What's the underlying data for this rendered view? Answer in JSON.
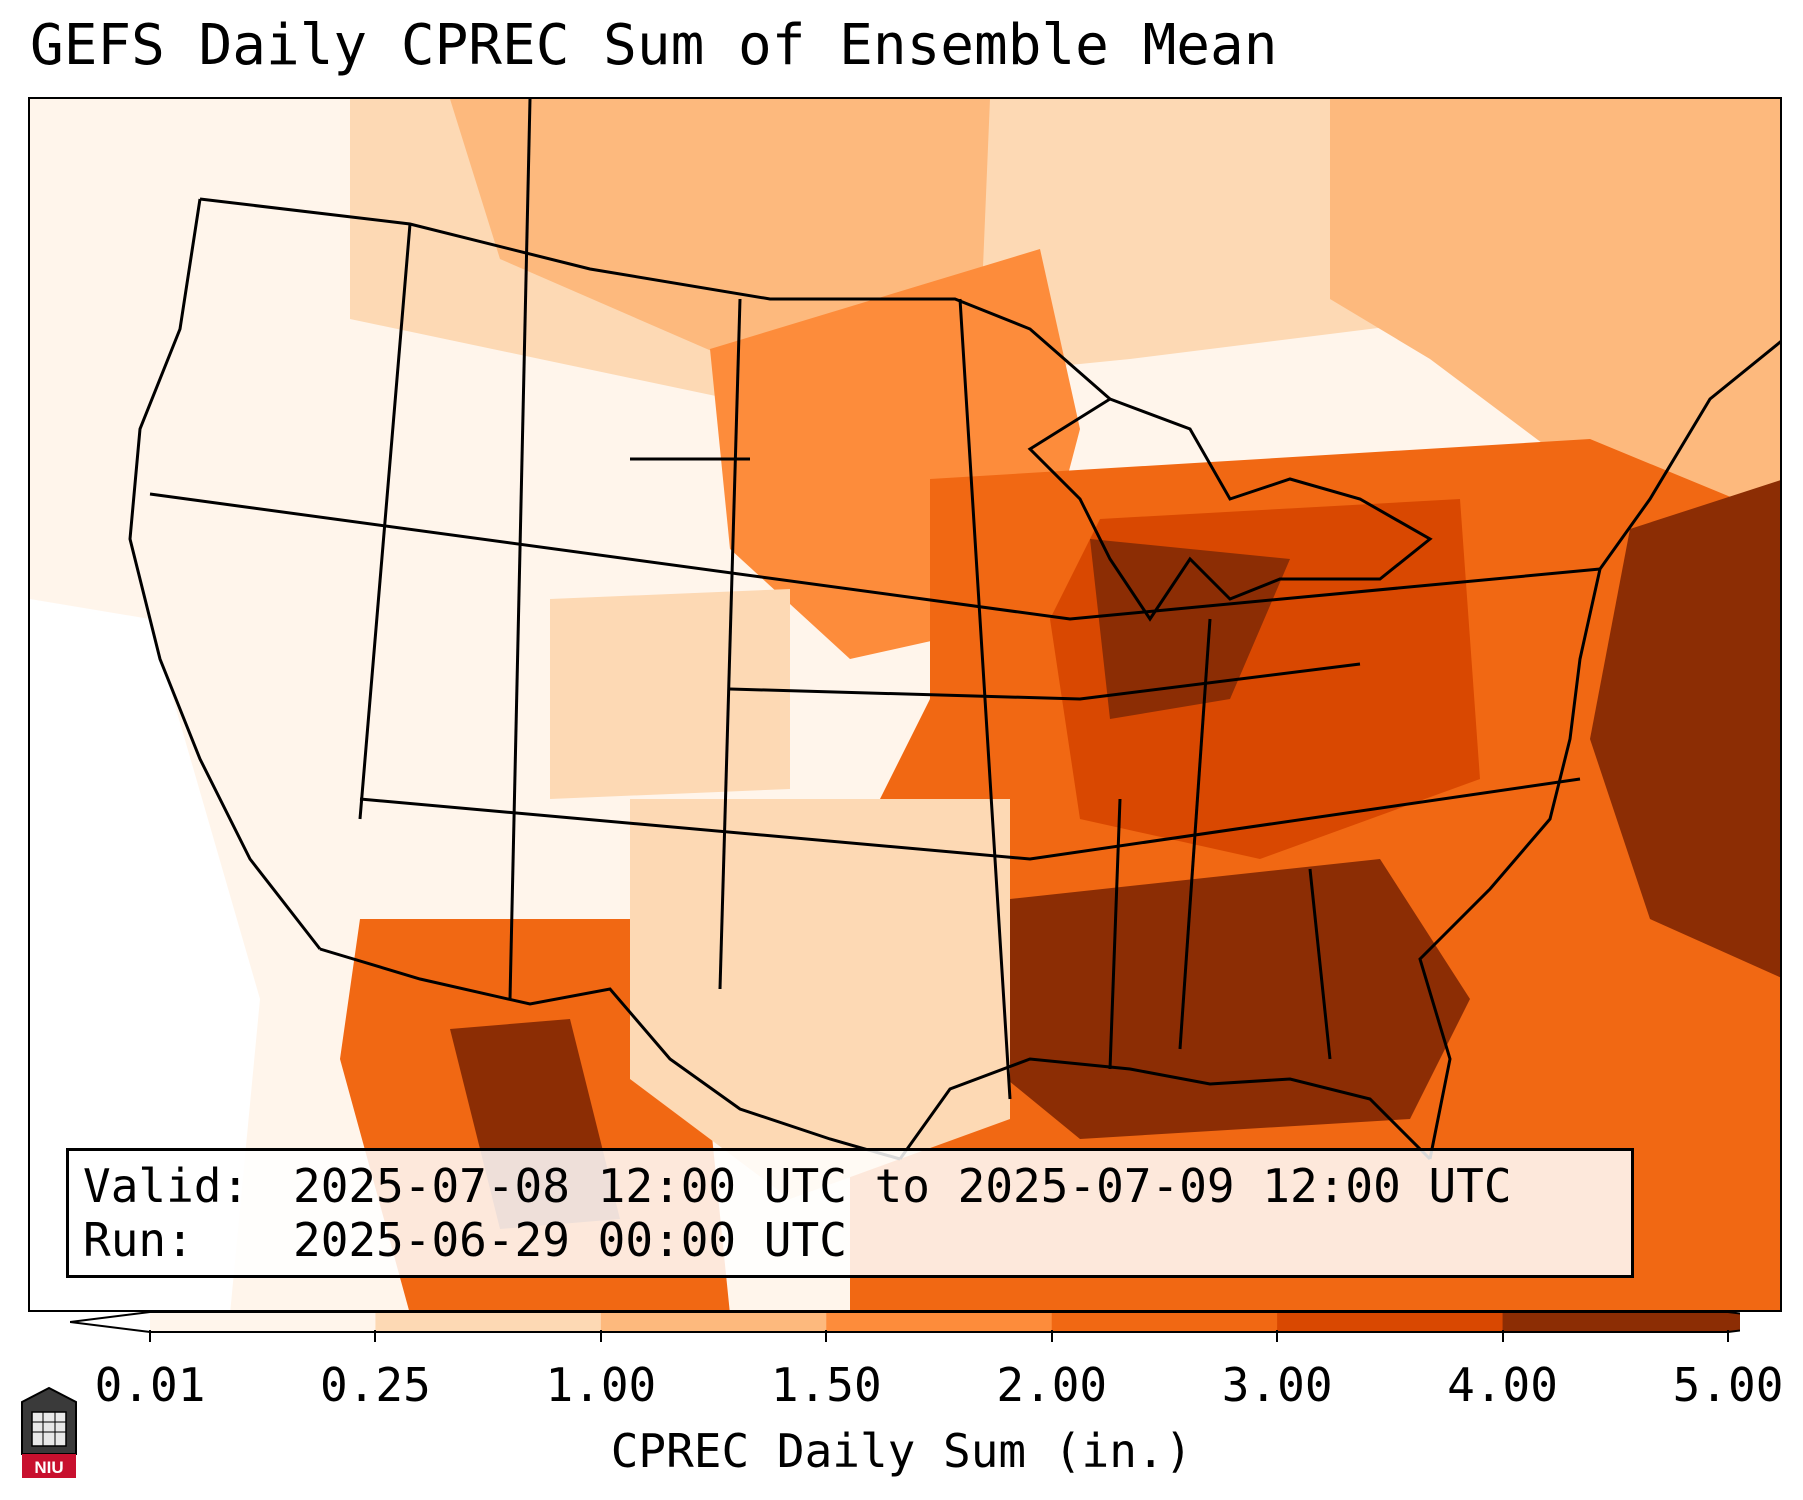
{
  "title": "GEFS Daily CPREC Sum of Ensemble Mean",
  "info_box": {
    "valid_key": "Valid:",
    "valid_value": "2025-07-08 12:00 UTC to 2025-07-09 12:00 UTC",
    "run_key": "Run:",
    "run_value": "2025-06-29 00:00 UTC"
  },
  "colorbar": {
    "label": "CPREC Daily Sum (in.)",
    "ticks": [
      "0.01",
      "0.25",
      "1.00",
      "1.50",
      "2.00",
      "3.00",
      "4.00",
      "5.00"
    ],
    "colors": [
      "#ffffff",
      "#fff5eb",
      "#fdd9b4",
      "#fdb97d",
      "#fd8c3b",
      "#f16813",
      "#d94801",
      "#8c2d04"
    ]
  },
  "logo": {
    "text": "NIU",
    "icon": "niu-logo-icon"
  }
}
